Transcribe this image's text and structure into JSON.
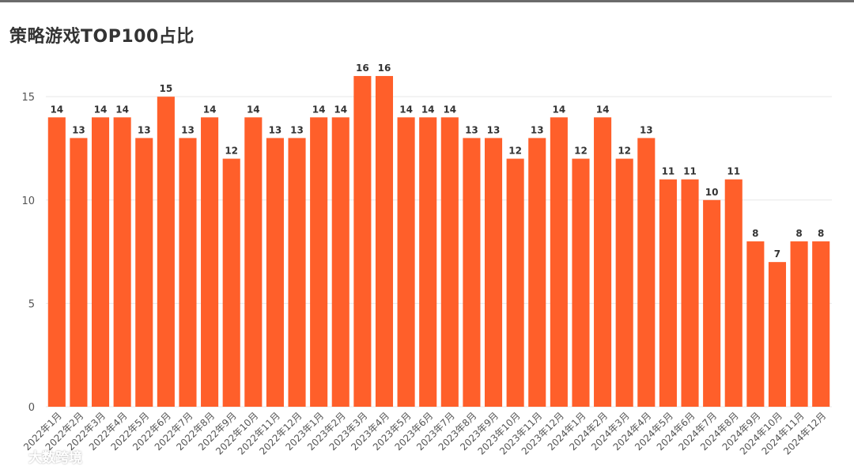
{
  "title": "策略游戏TOP100占比",
  "watermark": {
    "text": "大数跨境",
    "icon": "wechat-bubble-icon"
  },
  "colors": {
    "bar": "#ff5f2a",
    "grid": "#e8e8e8",
    "axis_text": "#555555",
    "label_text": "#333333",
    "top_rule": "#6b6b6b"
  },
  "chart_data": {
    "type": "bar",
    "title": "策略游戏TOP100占比",
    "xlabel": "",
    "ylabel": "",
    "ylim": [
      0,
      16.5
    ],
    "yticks": [
      0,
      5,
      10,
      15
    ],
    "grid": true,
    "categories": [
      "2022年1月",
      "2022年2月",
      "2022年3月",
      "2022年4月",
      "2022年5月",
      "2022年6月",
      "2022年7月",
      "2022年8月",
      "2022年9月",
      "2022年10月",
      "2022年11月",
      "2022年12月",
      "2023年1月",
      "2023年2月",
      "2023年3月",
      "2023年4月",
      "2023年5月",
      "2023年6月",
      "2023年7月",
      "2023年8月",
      "2023年9月",
      "2023年10月",
      "2023年11月",
      "2023年12月",
      "2024年1月",
      "2024年2月",
      "2024年3月",
      "2024年4月",
      "2024年5月",
      "2024年6月",
      "2024年7月",
      "2024年8月",
      "2024年9月",
      "2024年10月",
      "2024年11月",
      "2024年12月"
    ],
    "values": [
      14,
      13,
      14,
      14,
      13,
      15,
      13,
      14,
      12,
      14,
      13,
      13,
      14,
      14,
      16,
      16,
      14,
      14,
      14,
      13,
      13,
      12,
      13,
      14,
      12,
      14,
      12,
      13,
      11,
      11,
      10,
      11,
      8,
      7,
      8,
      8
    ]
  }
}
